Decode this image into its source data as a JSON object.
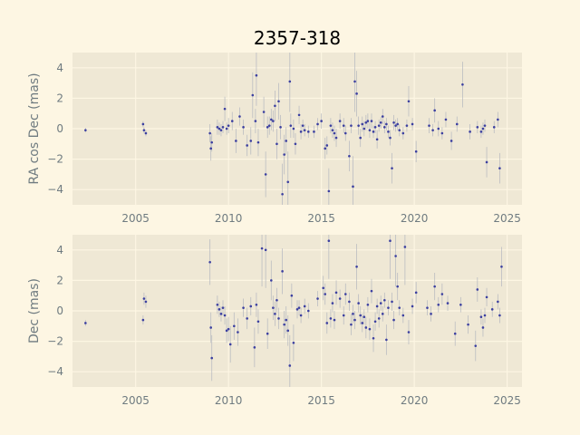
{
  "title": "2357-318",
  "colors": {
    "figure_bg": "#fdf6e3",
    "axes_bg": "#efe8d5",
    "grid": "#fdf6e3",
    "marker": "#3b3fa0",
    "errorbar": "#aeb2bd",
    "text": "#6f7b80"
  },
  "chart_data": [
    {
      "type": "scatter",
      "ylabel": "RA cos Dec (mas)",
      "xlim": [
        2001.6,
        2025.8
      ],
      "ylim": [
        -5,
        5
      ],
      "xticks": [
        2005,
        2010,
        2015,
        2020,
        2025
      ],
      "yticks": [
        -4,
        -2,
        0,
        2,
        4
      ],
      "grid": true,
      "points": [
        {
          "x": 2002.3,
          "y": -0.1,
          "e": 0.15
        },
        {
          "x": 2005.4,
          "y": 0.3,
          "e": 0.2
        },
        {
          "x": 2005.45,
          "y": -0.1,
          "e": 0.2
        },
        {
          "x": 2005.55,
          "y": -0.3,
          "e": 0.2
        },
        {
          "x": 2009.0,
          "y": -0.3,
          "e": 0.6
        },
        {
          "x": 2009.05,
          "y": -1.3,
          "e": 0.8
        },
        {
          "x": 2009.1,
          "y": -0.9,
          "e": 0.6
        },
        {
          "x": 2009.4,
          "y": 0.1,
          "e": 0.5
        },
        {
          "x": 2009.5,
          "y": 0.0,
          "e": 0.4
        },
        {
          "x": 2009.6,
          "y": -0.1,
          "e": 0.4
        },
        {
          "x": 2009.7,
          "y": 0.1,
          "e": 0.4
        },
        {
          "x": 2009.8,
          "y": 1.3,
          "e": 0.8
        },
        {
          "x": 2009.9,
          "y": 0.0,
          "e": 0.4
        },
        {
          "x": 2010.0,
          "y": 0.2,
          "e": 0.5
        },
        {
          "x": 2010.2,
          "y": 0.5,
          "e": 0.6
        },
        {
          "x": 2010.4,
          "y": -0.8,
          "e": 0.8
        },
        {
          "x": 2010.6,
          "y": 0.8,
          "e": 0.6
        },
        {
          "x": 2010.8,
          "y": 0.1,
          "e": 0.5
        },
        {
          "x": 2011.0,
          "y": -1.1,
          "e": 0.7
        },
        {
          "x": 2011.2,
          "y": -0.8,
          "e": 0.9
        },
        {
          "x": 2011.3,
          "y": 2.2,
          "e": 1.5
        },
        {
          "x": 2011.45,
          "y": 0.5,
          "e": 0.8
        },
        {
          "x": 2011.5,
          "y": 3.5,
          "e": 2.0
        },
        {
          "x": 2011.6,
          "y": -0.9,
          "e": 0.9
        },
        {
          "x": 2011.9,
          "y": 1.1,
          "e": 1.0
        },
        {
          "x": 2012.0,
          "y": -3.0,
          "e": 1.5
        },
        {
          "x": 2012.1,
          "y": 0.1,
          "e": 0.7
        },
        {
          "x": 2012.2,
          "y": 0.2,
          "e": 0.6
        },
        {
          "x": 2012.3,
          "y": 0.6,
          "e": 0.7
        },
        {
          "x": 2012.4,
          "y": 0.5,
          "e": 0.7
        },
        {
          "x": 2012.5,
          "y": 1.5,
          "e": 1.0
        },
        {
          "x": 2012.6,
          "y": -1.0,
          "e": 1.0
        },
        {
          "x": 2012.7,
          "y": 1.8,
          "e": 1.2
        },
        {
          "x": 2012.8,
          "y": 0.1,
          "e": 0.8
        },
        {
          "x": 2012.9,
          "y": -4.3,
          "e": 2.0
        },
        {
          "x": 2013.0,
          "y": -1.7,
          "e": 1.3
        },
        {
          "x": 2013.1,
          "y": -0.8,
          "e": 0.9
        },
        {
          "x": 2013.2,
          "y": -3.5,
          "e": 2.0
        },
        {
          "x": 2013.3,
          "y": 3.1,
          "e": 2.0
        },
        {
          "x": 2013.35,
          "y": 0.2,
          "e": 0.8
        },
        {
          "x": 2013.5,
          "y": 0.0,
          "e": 0.6
        },
        {
          "x": 2013.6,
          "y": -1.0,
          "e": 0.7
        },
        {
          "x": 2013.8,
          "y": 0.9,
          "e": 0.6
        },
        {
          "x": 2013.9,
          "y": -0.2,
          "e": 0.5
        },
        {
          "x": 2014.0,
          "y": 0.2,
          "e": 0.4
        },
        {
          "x": 2014.1,
          "y": -0.1,
          "e": 0.4
        },
        {
          "x": 2014.3,
          "y": -0.2,
          "e": 0.4
        },
        {
          "x": 2014.6,
          "y": -0.2,
          "e": 0.4
        },
        {
          "x": 2014.8,
          "y": 0.3,
          "e": 0.4
        },
        {
          "x": 2015.0,
          "y": 0.5,
          "e": 0.5
        },
        {
          "x": 2015.2,
          "y": -1.3,
          "e": 0.7
        },
        {
          "x": 2015.3,
          "y": -1.1,
          "e": 0.6
        },
        {
          "x": 2015.4,
          "y": -4.1,
          "e": 1.5
        },
        {
          "x": 2015.5,
          "y": 0.2,
          "e": 0.5
        },
        {
          "x": 2015.6,
          "y": -0.1,
          "e": 0.5
        },
        {
          "x": 2015.7,
          "y": -0.3,
          "e": 0.5
        },
        {
          "x": 2015.8,
          "y": -0.6,
          "e": 0.6
        },
        {
          "x": 2016.0,
          "y": 0.5,
          "e": 0.5
        },
        {
          "x": 2016.2,
          "y": 0.2,
          "e": 0.5
        },
        {
          "x": 2016.3,
          "y": -0.3,
          "e": 0.5
        },
        {
          "x": 2016.5,
          "y": -1.8,
          "e": 1.0
        },
        {
          "x": 2016.6,
          "y": 0.2,
          "e": 0.5
        },
        {
          "x": 2016.7,
          "y": -3.8,
          "e": 2.0
        },
        {
          "x": 2016.8,
          "y": 3.1,
          "e": 2.0
        },
        {
          "x": 2016.9,
          "y": 2.3,
          "e": 1.5
        },
        {
          "x": 2017.0,
          "y": 0.2,
          "e": 0.6
        },
        {
          "x": 2017.1,
          "y": -0.6,
          "e": 0.6
        },
        {
          "x": 2017.2,
          "y": 0.3,
          "e": 0.5
        },
        {
          "x": 2017.3,
          "y": 0.0,
          "e": 0.5
        },
        {
          "x": 2017.4,
          "y": 0.4,
          "e": 0.5
        },
        {
          "x": 2017.5,
          "y": 0.5,
          "e": 0.5
        },
        {
          "x": 2017.6,
          "y": -0.1,
          "e": 0.5
        },
        {
          "x": 2017.7,
          "y": 0.5,
          "e": 0.5
        },
        {
          "x": 2017.8,
          "y": -0.2,
          "e": 0.4
        },
        {
          "x": 2017.9,
          "y": 0.1,
          "e": 0.4
        },
        {
          "x": 2018.0,
          "y": -0.7,
          "e": 0.6
        },
        {
          "x": 2018.1,
          "y": 0.2,
          "e": 0.4
        },
        {
          "x": 2018.2,
          "y": 0.4,
          "e": 0.4
        },
        {
          "x": 2018.3,
          "y": 0.8,
          "e": 0.5
        },
        {
          "x": 2018.4,
          "y": 0.1,
          "e": 0.4
        },
        {
          "x": 2018.5,
          "y": 0.3,
          "e": 0.4
        },
        {
          "x": 2018.6,
          "y": -0.2,
          "e": 0.4
        },
        {
          "x": 2018.7,
          "y": -0.6,
          "e": 0.5
        },
        {
          "x": 2018.8,
          "y": -2.6,
          "e": 1.0
        },
        {
          "x": 2018.9,
          "y": 0.4,
          "e": 0.5
        },
        {
          "x": 2019.0,
          "y": 0.2,
          "e": 0.4
        },
        {
          "x": 2019.1,
          "y": 0.3,
          "e": 0.4
        },
        {
          "x": 2019.2,
          "y": -0.1,
          "e": 0.4
        },
        {
          "x": 2019.4,
          "y": -0.3,
          "e": 0.4
        },
        {
          "x": 2019.6,
          "y": 0.2,
          "e": 0.4
        },
        {
          "x": 2019.7,
          "y": 1.8,
          "e": 1.0
        },
        {
          "x": 2019.9,
          "y": 0.3,
          "e": 0.4
        },
        {
          "x": 2020.1,
          "y": -1.5,
          "e": 0.7
        },
        {
          "x": 2020.8,
          "y": 0.2,
          "e": 0.5
        },
        {
          "x": 2021.0,
          "y": -0.1,
          "e": 0.4
        },
        {
          "x": 2021.1,
          "y": 1.2,
          "e": 0.8
        },
        {
          "x": 2021.3,
          "y": 0.0,
          "e": 0.5
        },
        {
          "x": 2021.5,
          "y": -0.3,
          "e": 0.4
        },
        {
          "x": 2021.7,
          "y": 0.6,
          "e": 0.5
        },
        {
          "x": 2022.0,
          "y": -0.8,
          "e": 0.6
        },
        {
          "x": 2022.3,
          "y": 0.3,
          "e": 0.5
        },
        {
          "x": 2022.6,
          "y": 2.9,
          "e": 1.5
        },
        {
          "x": 2023.0,
          "y": -0.2,
          "e": 0.5
        },
        {
          "x": 2023.4,
          "y": 0.1,
          "e": 0.4
        },
        {
          "x": 2023.6,
          "y": -0.2,
          "e": 0.4
        },
        {
          "x": 2023.7,
          "y": 0.0,
          "e": 0.4
        },
        {
          "x": 2023.8,
          "y": 0.2,
          "e": 0.4
        },
        {
          "x": 2023.9,
          "y": -2.2,
          "e": 1.0
        },
        {
          "x": 2024.3,
          "y": 0.1,
          "e": 0.4
        },
        {
          "x": 2024.5,
          "y": 0.6,
          "e": 0.5
        },
        {
          "x": 2024.6,
          "y": -2.6,
          "e": 1.0
        }
      ]
    },
    {
      "type": "scatter",
      "ylabel": "Dec (mas)",
      "xlim": [
        2001.6,
        2025.8
      ],
      "ylim": [
        -5,
        5
      ],
      "xticks": [
        2005,
        2010,
        2015,
        2020,
        2025
      ],
      "yticks": [
        -4,
        -2,
        0,
        2,
        4
      ],
      "grid": true,
      "points": [
        {
          "x": 2002.3,
          "y": -0.8,
          "e": 0.2
        },
        {
          "x": 2005.4,
          "y": -0.6,
          "e": 0.3
        },
        {
          "x": 2005.45,
          "y": 0.8,
          "e": 0.4
        },
        {
          "x": 2005.55,
          "y": 0.6,
          "e": 0.4
        },
        {
          "x": 2009.0,
          "y": 3.2,
          "e": 1.5
        },
        {
          "x": 2009.05,
          "y": -1.1,
          "e": 1.0
        },
        {
          "x": 2009.1,
          "y": -3.1,
          "e": 1.5
        },
        {
          "x": 2009.4,
          "y": 0.4,
          "e": 0.6
        },
        {
          "x": 2009.5,
          "y": 0.1,
          "e": 0.5
        },
        {
          "x": 2009.6,
          "y": -0.2,
          "e": 0.5
        },
        {
          "x": 2009.7,
          "y": 0.2,
          "e": 0.5
        },
        {
          "x": 2009.8,
          "y": -0.3,
          "e": 0.6
        },
        {
          "x": 2009.9,
          "y": -1.3,
          "e": 0.8
        },
        {
          "x": 2010.0,
          "y": -1.2,
          "e": 0.8
        },
        {
          "x": 2010.1,
          "y": -2.2,
          "e": 1.2
        },
        {
          "x": 2010.3,
          "y": -1.0,
          "e": 0.9
        },
        {
          "x": 2010.5,
          "y": -1.4,
          "e": 0.9
        },
        {
          "x": 2010.8,
          "y": 0.2,
          "e": 0.6
        },
        {
          "x": 2011.0,
          "y": -0.5,
          "e": 0.7
        },
        {
          "x": 2011.2,
          "y": 0.3,
          "e": 0.6
        },
        {
          "x": 2011.4,
          "y": -2.4,
          "e": 1.3
        },
        {
          "x": 2011.5,
          "y": 0.4,
          "e": 0.8
        },
        {
          "x": 2011.6,
          "y": -0.7,
          "e": 0.8
        },
        {
          "x": 2011.8,
          "y": 4.1,
          "e": 2.5
        },
        {
          "x": 2012.0,
          "y": 4.0,
          "e": 2.5
        },
        {
          "x": 2012.1,
          "y": -1.5,
          "e": 1.0
        },
        {
          "x": 2012.3,
          "y": 2.0,
          "e": 1.3
        },
        {
          "x": 2012.4,
          "y": 0.2,
          "e": 0.8
        },
        {
          "x": 2012.5,
          "y": -0.2,
          "e": 0.8
        },
        {
          "x": 2012.6,
          "y": 0.7,
          "e": 0.8
        },
        {
          "x": 2012.7,
          "y": -0.5,
          "e": 0.7
        },
        {
          "x": 2012.9,
          "y": 2.6,
          "e": 1.5
        },
        {
          "x": 2013.0,
          "y": -0.9,
          "e": 0.9
        },
        {
          "x": 2013.1,
          "y": -0.6,
          "e": 0.9
        },
        {
          "x": 2013.2,
          "y": -1.3,
          "e": 1.0
        },
        {
          "x": 2013.3,
          "y": -3.6,
          "e": 2.0
        },
        {
          "x": 2013.4,
          "y": 1.0,
          "e": 0.8
        },
        {
          "x": 2013.5,
          "y": -2.1,
          "e": 1.2
        },
        {
          "x": 2013.7,
          "y": 0.1,
          "e": 0.6
        },
        {
          "x": 2013.8,
          "y": 0.2,
          "e": 0.5
        },
        {
          "x": 2013.9,
          "y": -0.3,
          "e": 0.5
        },
        {
          "x": 2014.1,
          "y": 0.3,
          "e": 0.5
        },
        {
          "x": 2014.3,
          "y": 0.0,
          "e": 0.5
        },
        {
          "x": 2014.8,
          "y": 0.8,
          "e": 0.5
        },
        {
          "x": 2015.1,
          "y": 1.5,
          "e": 0.8
        },
        {
          "x": 2015.2,
          "y": 1.1,
          "e": 0.7
        },
        {
          "x": 2015.3,
          "y": -0.8,
          "e": 0.7
        },
        {
          "x": 2015.4,
          "y": 4.6,
          "e": 2.5
        },
        {
          "x": 2015.5,
          "y": -0.5,
          "e": 0.6
        },
        {
          "x": 2015.6,
          "y": 0.5,
          "e": 0.6
        },
        {
          "x": 2015.7,
          "y": -0.6,
          "e": 0.6
        },
        {
          "x": 2015.8,
          "y": 1.2,
          "e": 0.8
        },
        {
          "x": 2016.0,
          "y": 0.8,
          "e": 0.6
        },
        {
          "x": 2016.2,
          "y": -0.3,
          "e": 0.6
        },
        {
          "x": 2016.3,
          "y": 1.1,
          "e": 0.7
        },
        {
          "x": 2016.5,
          "y": 0.6,
          "e": 0.6
        },
        {
          "x": 2016.6,
          "y": -0.9,
          "e": 0.7
        },
        {
          "x": 2016.7,
          "y": -0.2,
          "e": 0.6
        },
        {
          "x": 2016.8,
          "y": -0.6,
          "e": 0.6
        },
        {
          "x": 2016.9,
          "y": 2.9,
          "e": 1.5
        },
        {
          "x": 2017.0,
          "y": 0.5,
          "e": 0.6
        },
        {
          "x": 2017.1,
          "y": -0.3,
          "e": 0.6
        },
        {
          "x": 2017.2,
          "y": -0.8,
          "e": 0.6
        },
        {
          "x": 2017.3,
          "y": -0.4,
          "e": 0.5
        },
        {
          "x": 2017.4,
          "y": -1.1,
          "e": 0.7
        },
        {
          "x": 2017.5,
          "y": 0.4,
          "e": 0.5
        },
        {
          "x": 2017.6,
          "y": -1.2,
          "e": 0.7
        },
        {
          "x": 2017.7,
          "y": 1.3,
          "e": 0.8
        },
        {
          "x": 2017.8,
          "y": -1.8,
          "e": 0.9
        },
        {
          "x": 2017.9,
          "y": -0.7,
          "e": 0.6
        },
        {
          "x": 2018.0,
          "y": 0.3,
          "e": 0.5
        },
        {
          "x": 2018.1,
          "y": -0.5,
          "e": 0.6
        },
        {
          "x": 2018.2,
          "y": 0.5,
          "e": 0.5
        },
        {
          "x": 2018.3,
          "y": -0.2,
          "e": 0.5
        },
        {
          "x": 2018.4,
          "y": 0.7,
          "e": 0.5
        },
        {
          "x": 2018.5,
          "y": -1.9,
          "e": 1.0
        },
        {
          "x": 2018.6,
          "y": 0.2,
          "e": 0.5
        },
        {
          "x": 2018.7,
          "y": 4.6,
          "e": 2.5
        },
        {
          "x": 2018.8,
          "y": 0.6,
          "e": 0.6
        },
        {
          "x": 2018.9,
          "y": -0.6,
          "e": 0.6
        },
        {
          "x": 2019.0,
          "y": 3.6,
          "e": 2.0
        },
        {
          "x": 2019.1,
          "y": 1.6,
          "e": 0.9
        },
        {
          "x": 2019.2,
          "y": 0.2,
          "e": 0.5
        },
        {
          "x": 2019.4,
          "y": -0.3,
          "e": 0.5
        },
        {
          "x": 2019.5,
          "y": 4.2,
          "e": 2.5
        },
        {
          "x": 2019.7,
          "y": -1.4,
          "e": 0.8
        },
        {
          "x": 2019.9,
          "y": 0.3,
          "e": 0.5
        },
        {
          "x": 2020.1,
          "y": 1.2,
          "e": 0.7
        },
        {
          "x": 2020.7,
          "y": 0.2,
          "e": 0.5
        },
        {
          "x": 2020.9,
          "y": -0.2,
          "e": 0.5
        },
        {
          "x": 2021.1,
          "y": 1.6,
          "e": 0.9
        },
        {
          "x": 2021.3,
          "y": 0.4,
          "e": 0.5
        },
        {
          "x": 2021.5,
          "y": 1.1,
          "e": 0.7
        },
        {
          "x": 2021.8,
          "y": 0.5,
          "e": 0.5
        },
        {
          "x": 2022.2,
          "y": -1.5,
          "e": 0.8
        },
        {
          "x": 2022.5,
          "y": 0.4,
          "e": 0.5
        },
        {
          "x": 2022.9,
          "y": -0.9,
          "e": 0.6
        },
        {
          "x": 2023.3,
          "y": -2.3,
          "e": 1.0
        },
        {
          "x": 2023.4,
          "y": 1.4,
          "e": 0.8
        },
        {
          "x": 2023.6,
          "y": -0.4,
          "e": 0.5
        },
        {
          "x": 2023.7,
          "y": -1.1,
          "e": 0.6
        },
        {
          "x": 2023.8,
          "y": -0.3,
          "e": 0.5
        },
        {
          "x": 2023.9,
          "y": 0.9,
          "e": 0.6
        },
        {
          "x": 2024.2,
          "y": 0.1,
          "e": 0.5
        },
        {
          "x": 2024.5,
          "y": 0.6,
          "e": 0.5
        },
        {
          "x": 2024.6,
          "y": -0.3,
          "e": 0.5
        },
        {
          "x": 2024.7,
          "y": 2.9,
          "e": 1.3
        }
      ]
    }
  ]
}
